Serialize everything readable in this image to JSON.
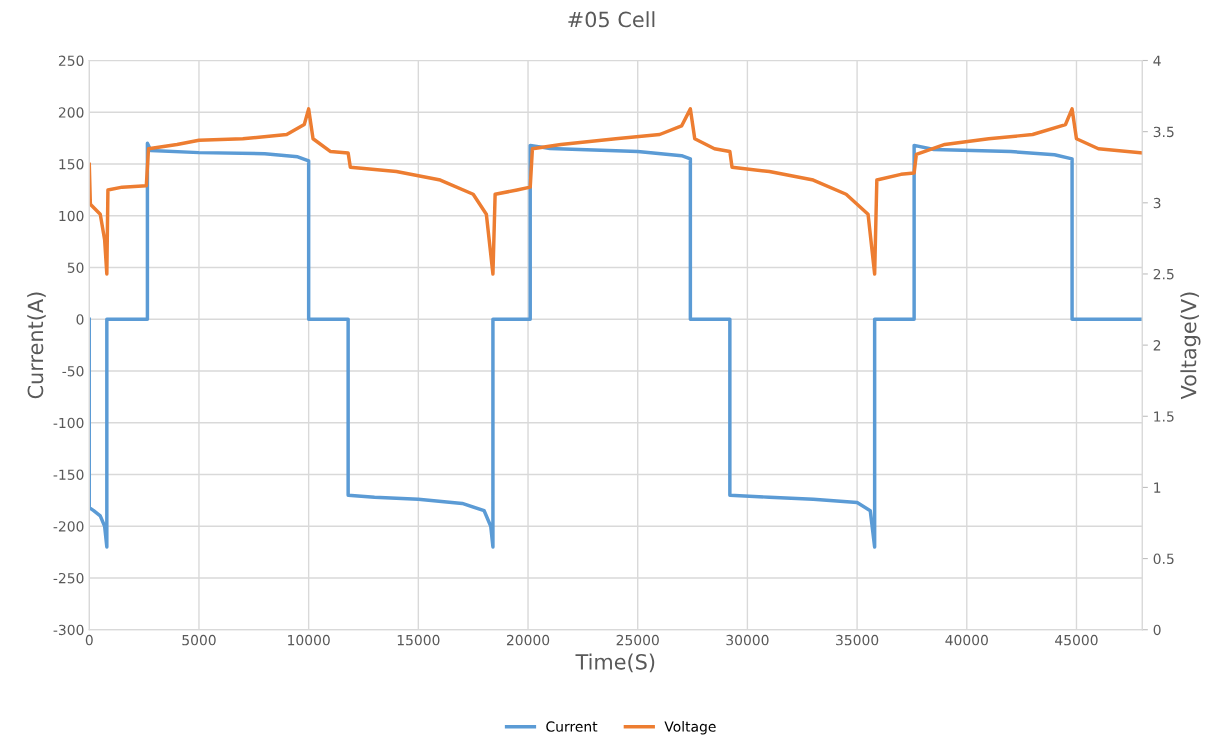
{
  "chart_data": {
    "type": "line",
    "title": "#05 Cell",
    "xlabel": "Time(S)",
    "ylabel": "Current(A)",
    "y2label": "Voltage(V)",
    "xlim": [
      0,
      48000
    ],
    "xticks": [
      0,
      5000,
      10000,
      15000,
      20000,
      25000,
      30000,
      35000,
      40000,
      45000
    ],
    "ylim": [
      -300,
      250
    ],
    "yticks": [
      -300,
      -250,
      -200,
      -150,
      -100,
      -50,
      0,
      50,
      100,
      150,
      200,
      250
    ],
    "y2lim": [
      0,
      4
    ],
    "y2ticks": [
      0,
      0.5,
      1,
      1.5,
      2,
      2.5,
      3,
      3.5,
      4
    ],
    "grid": true,
    "legend": "bottom",
    "marker": "none",
    "line_style": "solid",
    "series": [
      {
        "name": "Current",
        "color": "#5b9bd5",
        "x": [
          0,
          0,
          200,
          500,
          700,
          800,
          800,
          2650,
          2650,
          2800,
          5000,
          8000,
          9500,
          10000,
          10000,
          11800,
          11800,
          13000,
          15000,
          17000,
          18000,
          18300,
          18400,
          18400,
          20100,
          20100,
          21000,
          25000,
          27000,
          27400,
          27400,
          29200,
          29200,
          31000,
          33000,
          35000,
          35600,
          35800,
          35800,
          37600,
          37600,
          38500,
          42000,
          44000,
          44800,
          44800,
          48000
        ],
        "values": [
          0,
          -182,
          -185,
          -190,
          -200,
          -220,
          0,
          0,
          170,
          163,
          161,
          160,
          157,
          153,
          0,
          0,
          -170,
          -172,
          -174,
          -178,
          -185,
          -200,
          -220,
          0,
          0,
          168,
          165,
          162,
          158,
          155,
          0,
          0,
          -170,
          -172,
          -174,
          -177,
          -185,
          -220,
          0,
          0,
          168,
          164,
          162,
          159,
          155,
          0,
          0
        ]
      },
      {
        "name": "Voltage",
        "color": "#ed7d31",
        "axis": "y2",
        "x": [
          0,
          50,
          500,
          700,
          800,
          850,
          1500,
          2600,
          2700,
          4000,
          5000,
          7000,
          9000,
          9800,
          10000,
          10200,
          11000,
          11800,
          11900,
          14000,
          16000,
          17500,
          18100,
          18400,
          18500,
          19500,
          20100,
          20200,
          21500,
          24000,
          26000,
          27000,
          27400,
          27600,
          28500,
          29200,
          29300,
          31000,
          33000,
          34500,
          35500,
          35800,
          35900,
          37000,
          37600,
          37700,
          39000,
          41000,
          43000,
          44500,
          44800,
          45000,
          46000,
          48000
        ],
        "values": [
          3.27,
          2.99,
          2.92,
          2.74,
          2.5,
          3.09,
          3.11,
          3.12,
          3.38,
          3.41,
          3.44,
          3.45,
          3.48,
          3.55,
          3.66,
          3.45,
          3.36,
          3.35,
          3.25,
          3.22,
          3.16,
          3.06,
          2.92,
          2.5,
          3.06,
          3.09,
          3.11,
          3.38,
          3.41,
          3.45,
          3.48,
          3.54,
          3.66,
          3.45,
          3.38,
          3.36,
          3.25,
          3.22,
          3.16,
          3.06,
          2.92,
          2.5,
          3.16,
          3.2,
          3.21,
          3.34,
          3.41,
          3.45,
          3.48,
          3.55,
          3.66,
          3.45,
          3.38,
          3.35
        ]
      }
    ]
  }
}
